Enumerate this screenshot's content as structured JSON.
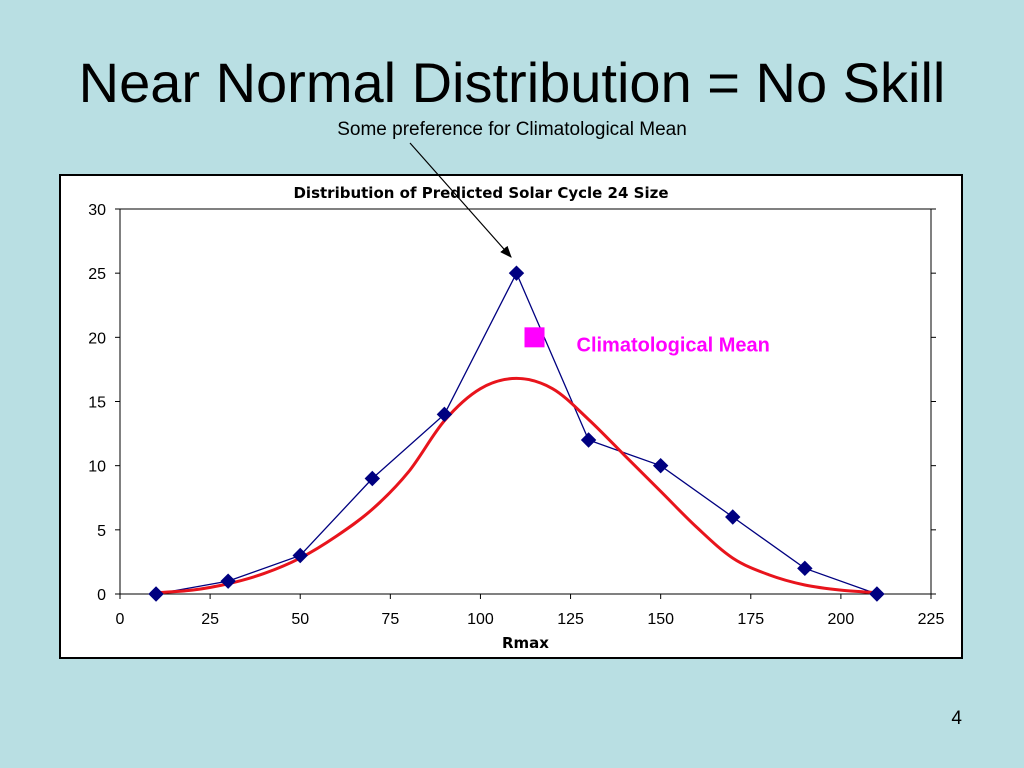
{
  "slide": {
    "title": "Near Normal Distribution = No Skill",
    "subtitle": "Some preference for Climatological Mean",
    "page_number": "4"
  },
  "colors": {
    "background": "#b9dfe3",
    "observed_series": "#000080",
    "fit_curve": "#e8141c",
    "climatological_mean": "#ff00ff"
  },
  "chart_data": {
    "type": "line",
    "title": "Distribution of Predicted Solar Cycle 24 Size",
    "xlabel": "Rmax",
    "ylabel": "",
    "xlim": [
      0,
      225
    ],
    "ylim": [
      0,
      30
    ],
    "x_ticks": [
      "0",
      "25",
      "50",
      "75",
      "100",
      "125",
      "150",
      "175",
      "200",
      "225"
    ],
    "y_ticks": [
      "0",
      "5",
      "10",
      "15",
      "20",
      "25",
      "30"
    ],
    "grid": false,
    "series": [
      {
        "marker": "diamond",
        "points": [
          {
            "x": 10,
            "y": 0
          },
          {
            "x": 30,
            "y": 1
          },
          {
            "x": 50,
            "y": 3
          },
          {
            "x": 70,
            "y": 9
          },
          {
            "x": 90,
            "y": 14
          },
          {
            "x": 110,
            "y": 25
          },
          {
            "x": 130,
            "y": 12
          },
          {
            "x": 150,
            "y": 10
          },
          {
            "x": 170,
            "y": 6
          },
          {
            "x": 190,
            "y": 2
          },
          {
            "x": 210,
            "y": 0
          }
        ]
      },
      {
        "style": "smooth-curve",
        "points": [
          {
            "x": 10,
            "y": 0.1
          },
          {
            "x": 20,
            "y": 0.3
          },
          {
            "x": 30,
            "y": 0.8
          },
          {
            "x": 40,
            "y": 1.6
          },
          {
            "x": 50,
            "y": 2.8
          },
          {
            "x": 60,
            "y": 4.5
          },
          {
            "x": 70,
            "y": 6.6
          },
          {
            "x": 80,
            "y": 9.5
          },
          {
            "x": 90,
            "y": 13.5
          },
          {
            "x": 100,
            "y": 16.0
          },
          {
            "x": 110,
            "y": 16.8
          },
          {
            "x": 120,
            "y": 16.0
          },
          {
            "x": 130,
            "y": 13.6
          },
          {
            "x": 140,
            "y": 10.8
          },
          {
            "x": 150,
            "y": 8.0
          },
          {
            "x": 160,
            "y": 5.2
          },
          {
            "x": 170,
            "y": 2.8
          },
          {
            "x": 180,
            "y": 1.5
          },
          {
            "x": 190,
            "y": 0.7
          },
          {
            "x": 200,
            "y": 0.3
          },
          {
            "x": 210,
            "y": 0.1
          }
        ]
      }
    ],
    "climatological_mean": {
      "x": 115,
      "y": 20,
      "label": "Climatological Mean"
    }
  }
}
